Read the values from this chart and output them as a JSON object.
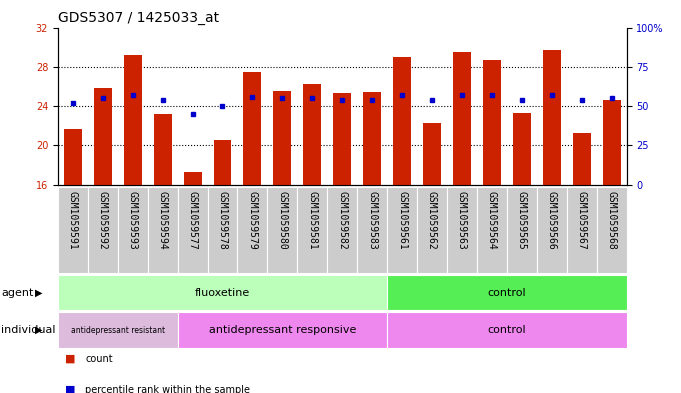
{
  "title": "GDS5307 / 1425033_at",
  "samples": [
    "GSM1059591",
    "GSM1059592",
    "GSM1059593",
    "GSM1059594",
    "GSM1059577",
    "GSM1059578",
    "GSM1059579",
    "GSM1059580",
    "GSM1059581",
    "GSM1059582",
    "GSM1059583",
    "GSM1059561",
    "GSM1059562",
    "GSM1059563",
    "GSM1059564",
    "GSM1059565",
    "GSM1059566",
    "GSM1059567",
    "GSM1059568"
  ],
  "counts": [
    21.7,
    25.8,
    29.2,
    23.2,
    17.3,
    20.5,
    27.5,
    25.5,
    26.3,
    25.3,
    25.4,
    29.0,
    22.3,
    29.5,
    28.7,
    23.3,
    29.7,
    21.3,
    24.6
  ],
  "percentiles": [
    52,
    55,
    57,
    54,
    45,
    50,
    56,
    55,
    55,
    54,
    54,
    57,
    54,
    57,
    57,
    54,
    57,
    54,
    55
  ],
  "ylim_left": [
    16,
    32
  ],
  "ylim_right": [
    0,
    100
  ],
  "yticks_left": [
    16,
    20,
    24,
    28,
    32
  ],
  "yticks_right": [
    0,
    25,
    50,
    75,
    100
  ],
  "bar_color": "#CC2200",
  "dot_color": "#0000CC",
  "agent_groups": [
    {
      "label": "fluoxetine",
      "start": 0,
      "end": 11,
      "color": "#BBFFBB"
    },
    {
      "label": "control",
      "start": 11,
      "end": 19,
      "color": "#55EE55"
    }
  ],
  "individual_groups": [
    {
      "label": "antidepressant resistant",
      "start": 0,
      "end": 4,
      "color": "#DDBBDD"
    },
    {
      "label": "antidepressant responsive",
      "start": 4,
      "end": 11,
      "color": "#EE88EE"
    },
    {
      "label": "control",
      "start": 11,
      "end": 19,
      "color": "#EE88EE"
    }
  ],
  "legend_count_color": "#CC2200",
  "legend_dot_color": "#0000CC",
  "title_fontsize": 10,
  "tick_fontsize": 7,
  "label_fontsize": 8,
  "sample_box_color": "#CCCCCC"
}
